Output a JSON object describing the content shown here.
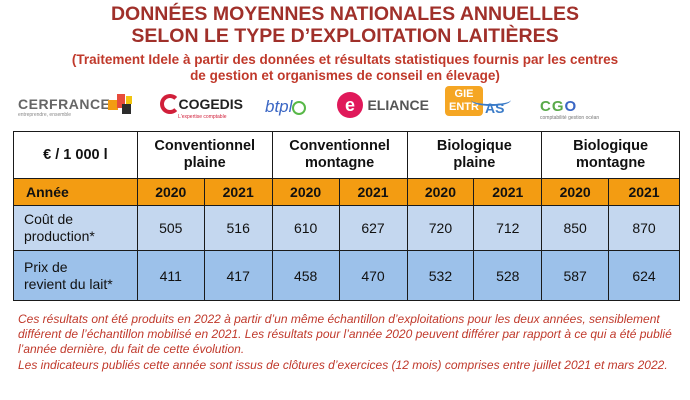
{
  "title": {
    "line1": "DONNÉES MOYENNES NATIONALES ANNUELLES",
    "line2": "SELON LE TYPE D’EXPLOITATION LAITIÈRES"
  },
  "subtitle": {
    "line1": "(Traitement Idele à partir des données et résultats statistiques fournis par les centres",
    "line2": "de gestion et organismes de conseil en élevage)"
  },
  "logos": {
    "cerfrance": {
      "name": "CERFRANCE",
      "tag": "entreprendre, ensemble"
    },
    "cogedis": {
      "name": "COGEDIS",
      "tag": "L'expertise comptable"
    },
    "btpl": {
      "name": "btpl"
    },
    "eliance": {
      "mark": "e",
      "name": "ELIANCE"
    },
    "gie": {
      "line1": "GIE",
      "line2": "ENTR",
      "as": "AS"
    },
    "cgo": {
      "name_a": "CG",
      "name_b": "O",
      "tag": "comptabilité gestion océan"
    }
  },
  "table": {
    "corner": "€ / 1 000 l",
    "groups": [
      {
        "line1": "Conventionnel",
        "line2": "plaine"
      },
      {
        "line1": "Conventionnel",
        "line2": "montagne"
      },
      {
        "line1": "Biologique",
        "line2": "plaine"
      },
      {
        "line1": "Biologique",
        "line2": "montagne"
      }
    ],
    "year_label": "Année",
    "years": [
      "2020",
      "2021",
      "2020",
      "2021",
      "2020",
      "2021",
      "2020",
      "2021"
    ],
    "rows": [
      {
        "line1": "Coût de",
        "line2": "production*",
        "values": [
          "505",
          "516",
          "610",
          "627",
          "720",
          "712",
          "850",
          "870"
        ]
      },
      {
        "line1": "Prix de",
        "line2": "revient du lait*",
        "values": [
          "411",
          "417",
          "458",
          "470",
          "532",
          "528",
          "587",
          "624"
        ]
      }
    ]
  },
  "notes": {
    "p1": "Ces résultats ont été produits en 2022 à partir d’un même échantillon d’exploitations pour les deux années, sensiblement différent de l’échantillon mobilisé en 2021. Les résultats pour l’année 2020 peuvent différer par rapport à ce qui a été publié l’année dernière, du fait de cette évolution.",
    "p2": "Les indicateurs publiés cette année sont issus de clôtures d’exercices (12 mois) comprises entre juillet 2021 et mars 2022."
  },
  "colors": {
    "title": "#a0302a",
    "subtitle": "#c0392b",
    "header_year_row": "#f39c12",
    "row_cost": "#c4d7ef",
    "row_price": "#9cc1ea"
  }
}
